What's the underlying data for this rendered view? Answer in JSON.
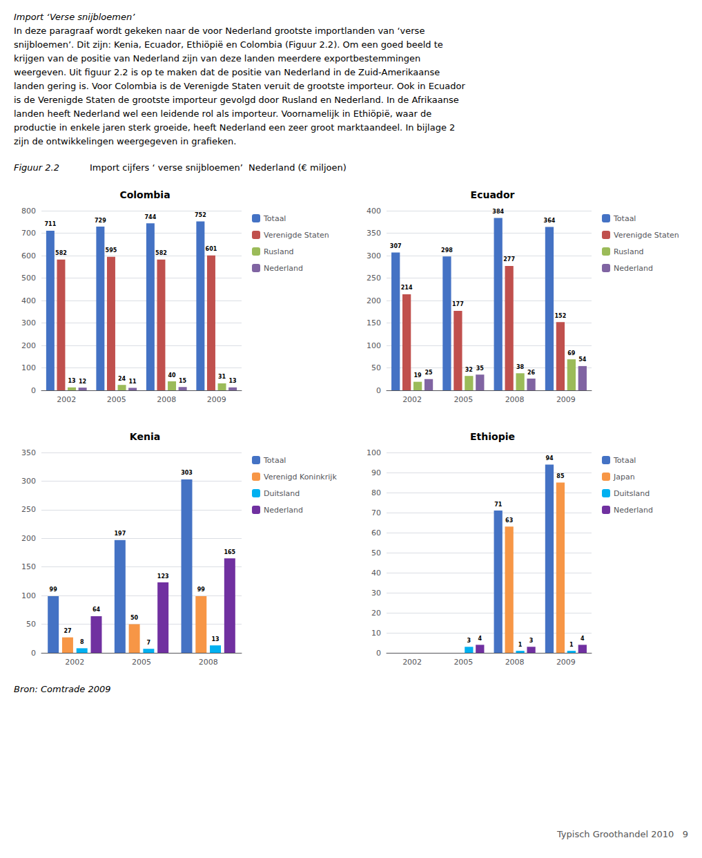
{
  "title": "Import cijfers ‘ verse snijbloemen’  Nederland (€ miljoen)",
  "annotations": [
    "Import ‘Verse snijbloemen’",
    "In deze paragraaf wordt gekeken naar de voor Nederland grootste importlanden van ‘verse",
    "snijbloemen’. Dit zijn: Kenia, Ecuador, Ethiöpië en Colombia (Figuur 2.2). Om een goed beeld te",
    "krijgen van de positie van Nederland zijn van deze landen meerdere exportbestemmingen",
    "weergeven. Uit figuur 2.2 is op te maken dat de positie van Nederland in de Zuid-Amerikaanse",
    "landen gering is. Voor Colombia is de Verenigde Staten veruit de grootste importeur. Ook in Ecuador",
    "is de Verenigde Staten de grootste importeur gevolgd door Rusland en Nederland. In de Afrikaanse",
    "landen heeft Nederland wel een leidende rol als importeur. Voornamelijk in Ethiöpië, waar de",
    "productie in enkele jaren sterk groeide, heeft Nederland een zeer groot marktaandeel. In bijlage 2",
    "zijn de ontwikkelingen weergegeven in grafieken.",
    "Figuur 2.2",
    "Bron: Comtrade 2009",
    "Typisch Groothandel 2010   9"
  ],
  "chart_data": [
    {
      "type": "bar",
      "title": "Colombia",
      "categories": [
        "2002",
        "2005",
        "2008",
        "2009"
      ],
      "series": [
        {
          "name": "Totaal",
          "color": "#4472C4",
          "values": [
            711,
            729,
            744,
            752
          ]
        },
        {
          "name": "Verenigde Staten",
          "color": "#C0504D",
          "values": [
            582,
            595,
            582,
            601
          ]
        },
        {
          "name": "Rusland",
          "color": "#9BBB59",
          "values": [
            13,
            24,
            40,
            31
          ]
        },
        {
          "name": "Nederland",
          "color": "#8064A2",
          "values": [
            12,
            11,
            15,
            13
          ]
        }
      ],
      "ylim": [
        0,
        800
      ],
      "yticks": [
        0,
        100,
        200,
        300,
        400,
        500,
        600,
        700,
        800
      ],
      "grid": true,
      "legend": "right",
      "data_labels": true
    },
    {
      "type": "bar",
      "title": "Ecuador",
      "categories": [
        "2002",
        "2005",
        "2008",
        "2009"
      ],
      "series": [
        {
          "name": "Totaal",
          "color": "#4472C4",
          "values": [
            307,
            298,
            384,
            364
          ]
        },
        {
          "name": "Verenigde Staten",
          "color": "#C0504D",
          "values": [
            214,
            177,
            277,
            152
          ]
        },
        {
          "name": "Rusland",
          "color": "#9BBB59",
          "values": [
            19,
            32,
            38,
            69
          ]
        },
        {
          "name": "Nederland",
          "color": "#8064A2",
          "values": [
            25,
            35,
            26,
            54
          ]
        }
      ],
      "ylim": [
        0,
        400
      ],
      "yticks": [
        0,
        50,
        100,
        150,
        200,
        250,
        300,
        350,
        400
      ],
      "grid": true,
      "legend": "right",
      "data_labels": true
    },
    {
      "type": "bar",
      "title": "Kenia",
      "categories": [
        "2002",
        "2005",
        "2008"
      ],
      "series": [
        {
          "name": "Totaal",
          "color": "#4472C4",
          "values": [
            99,
            197,
            303
          ]
        },
        {
          "name": "Verenigd Koninkrijk",
          "color": "#F79646",
          "values": [
            27,
            50,
            99
          ]
        },
        {
          "name": "Duitsland",
          "color": "#00B0F0",
          "values": [
            8,
            7,
            13
          ]
        },
        {
          "name": "Nederland",
          "color": "#7030A0",
          "values": [
            64,
            123,
            165
          ]
        }
      ],
      "ylim": [
        0,
        350
      ],
      "yticks": [
        0,
        50,
        100,
        150,
        200,
        250,
        300,
        350
      ],
      "grid": true,
      "legend": "right",
      "data_labels": true
    },
    {
      "type": "bar",
      "title": "Ethiopie",
      "categories": [
        "2002",
        "2005",
        "2008",
        "2009"
      ],
      "series": [
        {
          "name": "Totaal",
          "color": "#4472C4",
          "values": [
            0,
            0,
            71,
            94
          ]
        },
        {
          "name": "Japan",
          "color": "#F79646",
          "values": [
            0,
            0,
            63,
            85
          ]
        },
        {
          "name": "Duitsland",
          "color": "#00B0F0",
          "values": [
            0,
            3,
            1,
            1
          ]
        },
        {
          "name": "Nederland",
          "color": "#7030A0",
          "values": [
            0,
            4,
            3,
            4
          ]
        }
      ],
      "ylim": [
        0,
        100
      ],
      "yticks": [
        0,
        10,
        20,
        30,
        40,
        50,
        60,
        70,
        80,
        90,
        100
      ],
      "grid": true,
      "legend": "right",
      "data_labels": true
    }
  ]
}
